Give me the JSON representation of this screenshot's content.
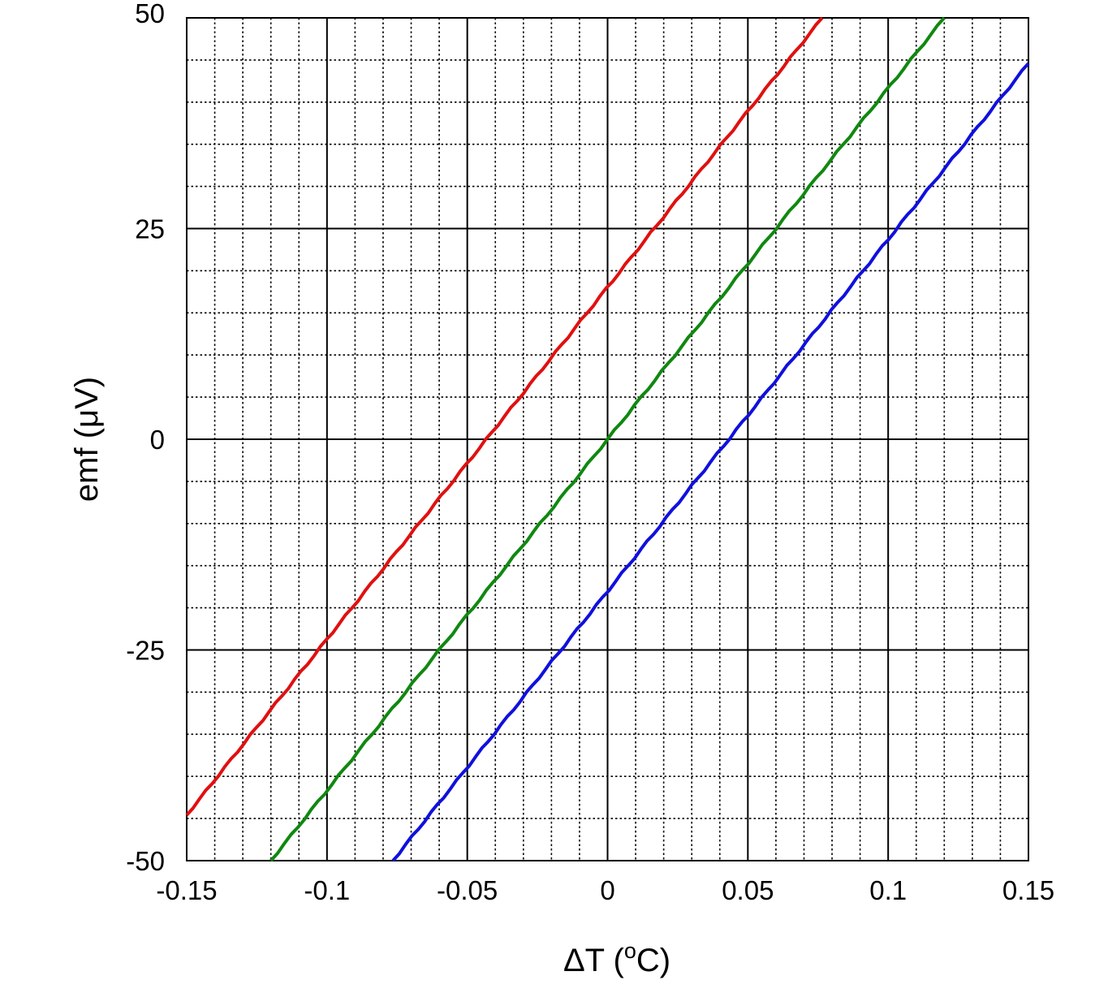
{
  "chart_data": {
    "type": "line",
    "title": "",
    "xlabel": "ΔT (oC)",
    "xlabel_parts": {
      "base": "ΔT (",
      "sup": "o",
      "unit": "C)"
    },
    "ylabel": "emf (μV)",
    "xlim": [
      -0.15,
      0.15
    ],
    "ylim": [
      -50,
      50
    ],
    "x_ticks": [
      -0.15,
      -0.1,
      -0.05,
      0,
      0.05,
      0.1,
      0.15
    ],
    "x_tick_labels": [
      "-0.15",
      "-0.1",
      "-0.05",
      "0",
      "0.05",
      "0.1",
      "0.15"
    ],
    "y_ticks": [
      -50,
      -25,
      0,
      25,
      50
    ],
    "y_tick_labels": [
      "-50",
      "-25",
      "0",
      "25",
      "50"
    ],
    "x_minor_step": 0.01,
    "y_minor_step": 5,
    "grid": true,
    "legend": "none",
    "series": [
      {
        "name": "red",
        "color": "#e01010",
        "x": [
          -0.15,
          0.0765
        ],
        "y": [
          -44.6,
          50
        ]
      },
      {
        "name": "green",
        "color": "#108810",
        "x": [
          -0.12,
          0.12
        ],
        "y": [
          -50,
          50
        ]
      },
      {
        "name": "blue",
        "color": "#1010dd",
        "x": [
          -0.0765,
          0.15
        ],
        "y": [
          -50,
          44.6
        ]
      }
    ]
  }
}
